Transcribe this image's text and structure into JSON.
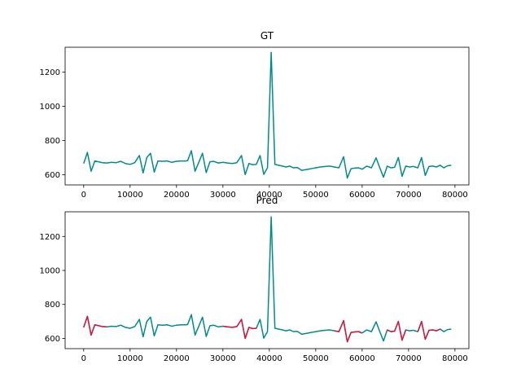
{
  "chart_data": [
    {
      "type": "line",
      "title": "GT",
      "xlabel": "",
      "ylabel": "",
      "xlim": [
        -4000,
        83000
      ],
      "ylim": [
        540,
        1345
      ],
      "xticks": [
        0,
        10000,
        20000,
        30000,
        40000,
        50000,
        60000,
        70000,
        80000
      ],
      "xtick_labels": [
        "0",
        "10000",
        "20000",
        "30000",
        "40000",
        "50000",
        "60000",
        "70000",
        "80000"
      ],
      "yticks": [
        600,
        800,
        1000,
        1200
      ],
      "ytick_labels": [
        "600",
        "800",
        "1000",
        "1200"
      ],
      "grid": false,
      "colors": {
        "base": "#008b8b",
        "highlight": "#dc143c"
      },
      "series": [
        {
          "x": [
            0,
            800,
            1600,
            2400,
            3200,
            4000,
            5000,
            6000,
            7000,
            8000,
            9000,
            10000,
            11000,
            12000,
            12800,
            13600,
            14400,
            15200,
            16000,
            17000,
            18000,
            19000,
            20000,
            21000,
            22000,
            22400,
            23200,
            24000,
            24800,
            25600,
            26400,
            27200,
            28000,
            29000,
            30000,
            31000,
            32000,
            33000,
            34000,
            34800,
            35600,
            36400,
            37200,
            38000,
            38800,
            39600,
            40400,
            41200,
            42000,
            42800,
            43600,
            44400,
            45200,
            46000,
            47000,
            48000,
            49000,
            50000,
            51000,
            52000,
            53000,
            54000,
            55000,
            56000,
            56800,
            57600,
            58400,
            59200,
            60000,
            61000,
            62000,
            63000,
            63800,
            64600,
            65400,
            66200,
            67000,
            67800,
            68600,
            69400,
            70200,
            71000,
            72000,
            72800,
            73600,
            74400,
            75200,
            76000,
            76800,
            77600,
            78400,
            79200
          ],
          "y": [
            665,
            730,
            620,
            680,
            675,
            670,
            668,
            672,
            670,
            678,
            665,
            660,
            670,
            712,
            610,
            700,
            725,
            615,
            680,
            678,
            680,
            672,
            678,
            680,
            680,
            682,
            740,
            620,
            672,
            725,
            612,
            675,
            678,
            668,
            672,
            668,
            665,
            670,
            712,
            600,
            665,
            658,
            660,
            712,
            602,
            640,
            1315,
            660,
            655,
            650,
            645,
            650,
            640,
            642,
            625,
            630,
            635,
            640,
            645,
            648,
            650,
            645,
            640,
            705,
            580,
            635,
            638,
            640,
            632,
            650,
            640,
            698,
            640,
            585,
            650,
            640,
            643,
            700,
            590,
            650,
            645,
            648,
            640,
            700,
            595,
            648,
            650,
            645,
            655,
            640,
            652,
            655
          ]
        }
      ]
    },
    {
      "type": "line",
      "title": "Pred",
      "xlabel": "",
      "ylabel": "",
      "xlim": [
        -4000,
        83000
      ],
      "ylim": [
        540,
        1345
      ],
      "xticks": [
        0,
        10000,
        20000,
        30000,
        40000,
        50000,
        60000,
        70000,
        80000
      ],
      "xtick_labels": [
        "0",
        "10000",
        "20000",
        "30000",
        "40000",
        "50000",
        "60000",
        "70000",
        "80000"
      ],
      "yticks": [
        600,
        800,
        1000,
        1200
      ],
      "ytick_labels": [
        "600",
        "800",
        "1000",
        "1200"
      ],
      "grid": false,
      "colors": {
        "base": "#008b8b",
        "highlight": "#dc143c"
      },
      "highlight_ranges": [
        [
          0,
          5000
        ],
        [
          30000,
          37200
        ],
        [
          54000,
          60000
        ],
        [
          65400,
          69400
        ],
        [
          72000,
          76800
        ]
      ],
      "series": [
        {
          "x": [
            0,
            800,
            1600,
            2400,
            3200,
            4000,
            5000,
            6000,
            7000,
            8000,
            9000,
            10000,
            11000,
            12000,
            12800,
            13600,
            14400,
            15200,
            16000,
            17000,
            18000,
            19000,
            20000,
            21000,
            22000,
            22400,
            23200,
            24000,
            24800,
            25600,
            26400,
            27200,
            28000,
            29000,
            30000,
            31000,
            32000,
            33000,
            34000,
            34800,
            35600,
            36400,
            37200,
            38000,
            38800,
            39600,
            40400,
            41200,
            42000,
            42800,
            43600,
            44400,
            45200,
            46000,
            47000,
            48000,
            49000,
            50000,
            51000,
            52000,
            53000,
            54000,
            55000,
            56000,
            56800,
            57600,
            58400,
            59200,
            60000,
            61000,
            62000,
            63000,
            63800,
            64600,
            65400,
            66200,
            67000,
            67800,
            68600,
            69400,
            70200,
            71000,
            72000,
            72800,
            73600,
            74400,
            75200,
            76000,
            76800,
            77600,
            78400,
            79200
          ],
          "y": [
            665,
            730,
            620,
            680,
            675,
            670,
            668,
            672,
            670,
            678,
            665,
            660,
            670,
            712,
            610,
            700,
            725,
            615,
            680,
            678,
            680,
            672,
            678,
            680,
            680,
            682,
            740,
            620,
            672,
            725,
            612,
            675,
            678,
            668,
            672,
            668,
            665,
            670,
            712,
            600,
            665,
            658,
            660,
            712,
            602,
            640,
            1315,
            660,
            655,
            650,
            645,
            650,
            640,
            642,
            625,
            630,
            635,
            640,
            645,
            648,
            650,
            645,
            640,
            705,
            580,
            635,
            638,
            640,
            632,
            650,
            640,
            698,
            640,
            585,
            650,
            640,
            643,
            700,
            590,
            650,
            645,
            648,
            640,
            700,
            595,
            648,
            650,
            645,
            655,
            640,
            652,
            655
          ]
        }
      ]
    }
  ]
}
